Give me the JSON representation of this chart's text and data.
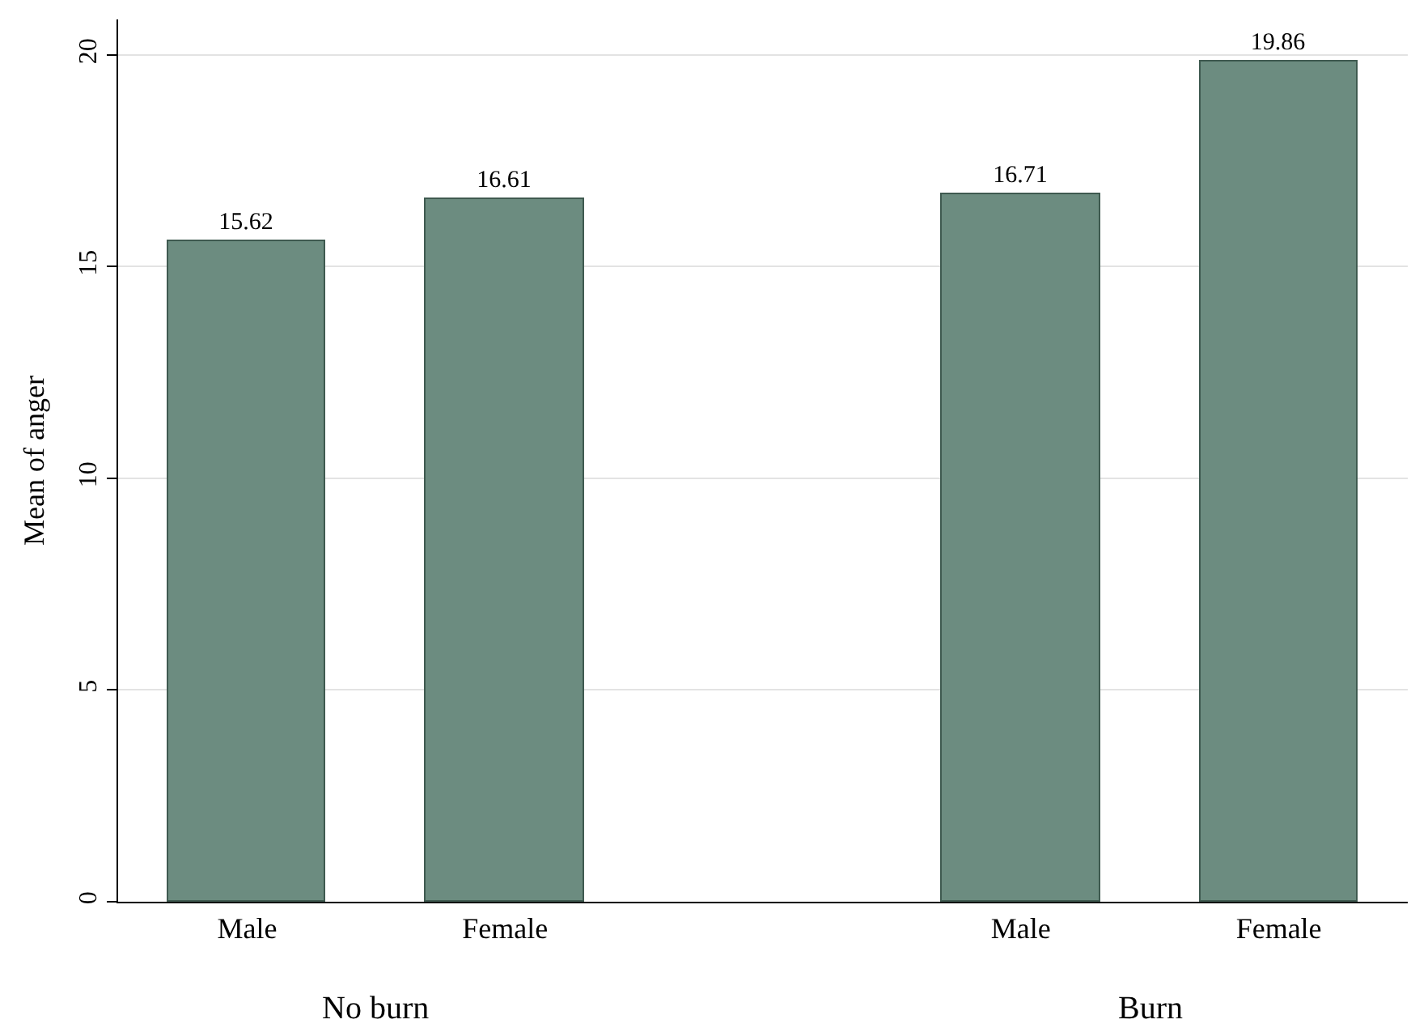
{
  "chart_data": {
    "type": "bar",
    "ylabel": "Mean of anger",
    "categories": [
      "Male",
      "Female",
      null,
      "Male",
      "Female"
    ],
    "values": [
      15.62,
      16.61,
      null,
      16.71,
      19.86
    ],
    "color": "#6c8c80",
    "data_labels": true,
    "ylim": [
      0,
      20.84
    ],
    "yticks": [
      0,
      5,
      10,
      15,
      20
    ],
    "grid": "y",
    "annotations": [
      "No burn",
      "Burn"
    ]
  }
}
